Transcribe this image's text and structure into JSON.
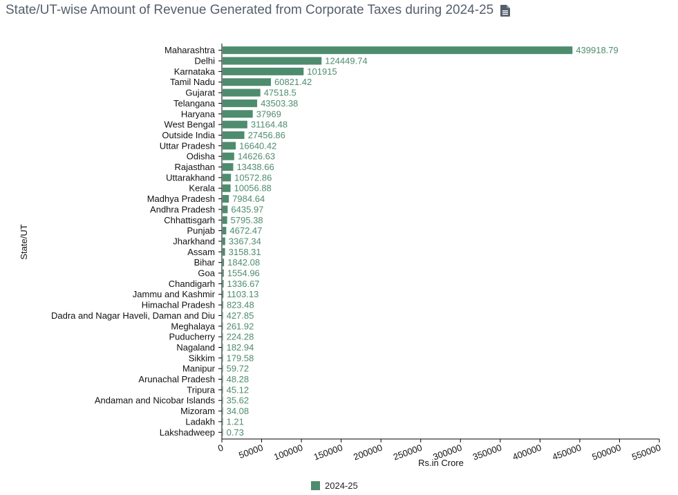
{
  "title": "State/UT-wise Amount of Revenue Generated from Corporate Taxes during 2024-25",
  "icons": {
    "export": "document-icon"
  },
  "colors": {
    "bar": "#4e8c6e",
    "label": "#4e8c6e",
    "title": "#555f6b"
  },
  "chart_data": {
    "type": "bar",
    "orientation": "horizontal",
    "title": "State/UT-wise Amount of Revenue Generated from Corporate Taxes during 2024-25",
    "xlabel": "Rs.in Crore",
    "ylabel": "State/UT",
    "xlim": [
      0,
      550000
    ],
    "xticks": [
      "0",
      "50000",
      "100000",
      "150000",
      "200000",
      "250000",
      "300000",
      "350000",
      "400000",
      "450000",
      "500000",
      "550000"
    ],
    "legend": {
      "position": "bottom",
      "entries": [
        "2024-25"
      ]
    },
    "grid": false,
    "categories": [
      "Maharashtra",
      "Delhi",
      "Karnataka",
      "Tamil Nadu",
      "Gujarat",
      "Telangana",
      "Haryana",
      "West Bengal",
      "Outside India",
      "Uttar Pradesh",
      "Odisha",
      "Rajasthan",
      "Uttarakhand",
      "Kerala",
      "Madhya Pradesh",
      "Andhra Pradesh",
      "Chhattisgarh",
      "Punjab",
      "Jharkhand",
      "Assam",
      "Bihar",
      "Goa",
      "Chandigarh",
      "Jammu and Kashmir",
      "Himachal Pradesh",
      "Dadra and Nagar Haveli, Daman and Diu",
      "Meghalaya",
      "Puducherry",
      "Nagaland",
      "Sikkim",
      "Manipur",
      "Arunachal Pradesh",
      "Tripura",
      "Andaman and Nicobar Islands",
      "Mizoram",
      "Ladakh",
      "Lakshadweep"
    ],
    "series": [
      {
        "name": "2024-25",
        "values": [
          439918.79,
          124449.74,
          101915,
          60821.42,
          47518.5,
          43503.38,
          37969,
          31164.48,
          27456.86,
          16640.42,
          14626.63,
          13438.66,
          10572.86,
          10056.88,
          7984.64,
          6435.97,
          5795.38,
          4672.47,
          3367.34,
          3158.31,
          1842.08,
          1554.96,
          1336.67,
          1103.13,
          823.48,
          427.85,
          261.92,
          224.28,
          182.94,
          179.58,
          59.72,
          48.28,
          45.12,
          35.62,
          34.08,
          1.21,
          0.73
        ],
        "labels": [
          "439918.79",
          "124449.74",
          "101915",
          "60821.42",
          "47518.5",
          "43503.38",
          "37969",
          "31164.48",
          "27456.86",
          "16640.42",
          "14626.63",
          "13438.66",
          "10572.86",
          "10056.88",
          "7984.64",
          "6435.97",
          "5795.38",
          "4672.47",
          "3367.34",
          "3158.31",
          "1842.08",
          "1554.96",
          "1336.67",
          "1103.13",
          "823.48",
          "427.85",
          "261.92",
          "224.28",
          "182.94",
          "179.58",
          "59.72",
          "48.28",
          "45.12",
          "35.62",
          "34.08",
          "1.21",
          "0.73"
        ]
      }
    ]
  }
}
